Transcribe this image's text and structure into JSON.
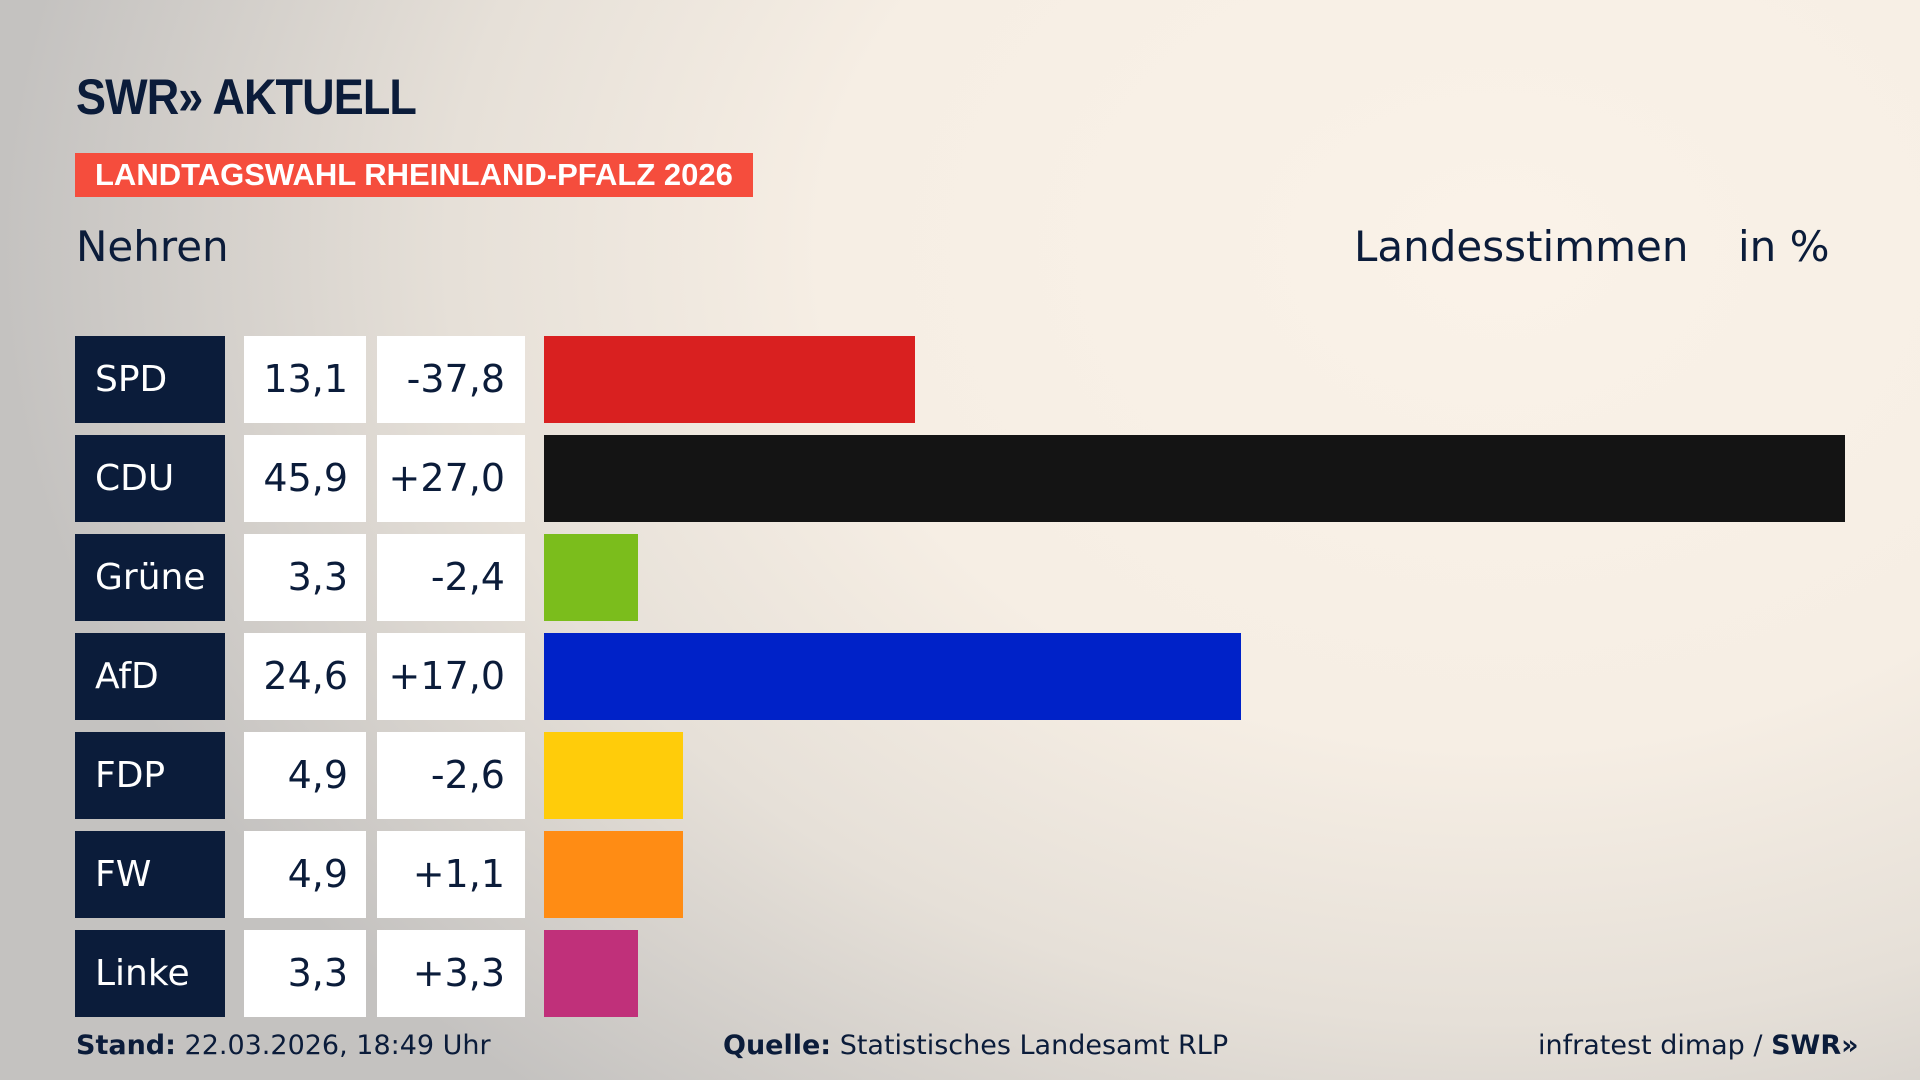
{
  "logo": "SWR» AKTUELL",
  "banner": "LANDTAGSWAHL RHEINLAND-PFALZ 2026",
  "place": "Nehren",
  "header_label": "Landesstimmen",
  "unit": "in %",
  "chart_data": {
    "type": "bar",
    "orientation": "horizontal",
    "categories": [
      "SPD",
      "CDU",
      "Grüne",
      "AfD",
      "FDP",
      "FW",
      "Linke"
    ],
    "values": [
      13.1,
      45.9,
      3.3,
      24.6,
      4.9,
      4.9,
      3.3
    ],
    "values_label": [
      "13,1",
      "45,9",
      "3,3",
      "24,6",
      "4,9",
      "4,9",
      "3,3"
    ],
    "diff_label": [
      "-37,8",
      "+27,0",
      "-2,4",
      "+17,0",
      "-2,6",
      "+1,1",
      "+3,3"
    ],
    "colors": [
      "#d92020",
      "#141414",
      "#7bbd1c",
      "#0022c8",
      "#ffcc0a",
      "#ff8c14",
      "#c0307a"
    ]
  },
  "footer": {
    "stand_label": "Stand:",
    "stand_value": "22.03.2026, 18:49 Uhr",
    "source_label": "Quelle:",
    "source_value": "Statistisches Landesamt RLP",
    "credit": "infratest dimap /",
    "credit_logo": "SWR»"
  }
}
